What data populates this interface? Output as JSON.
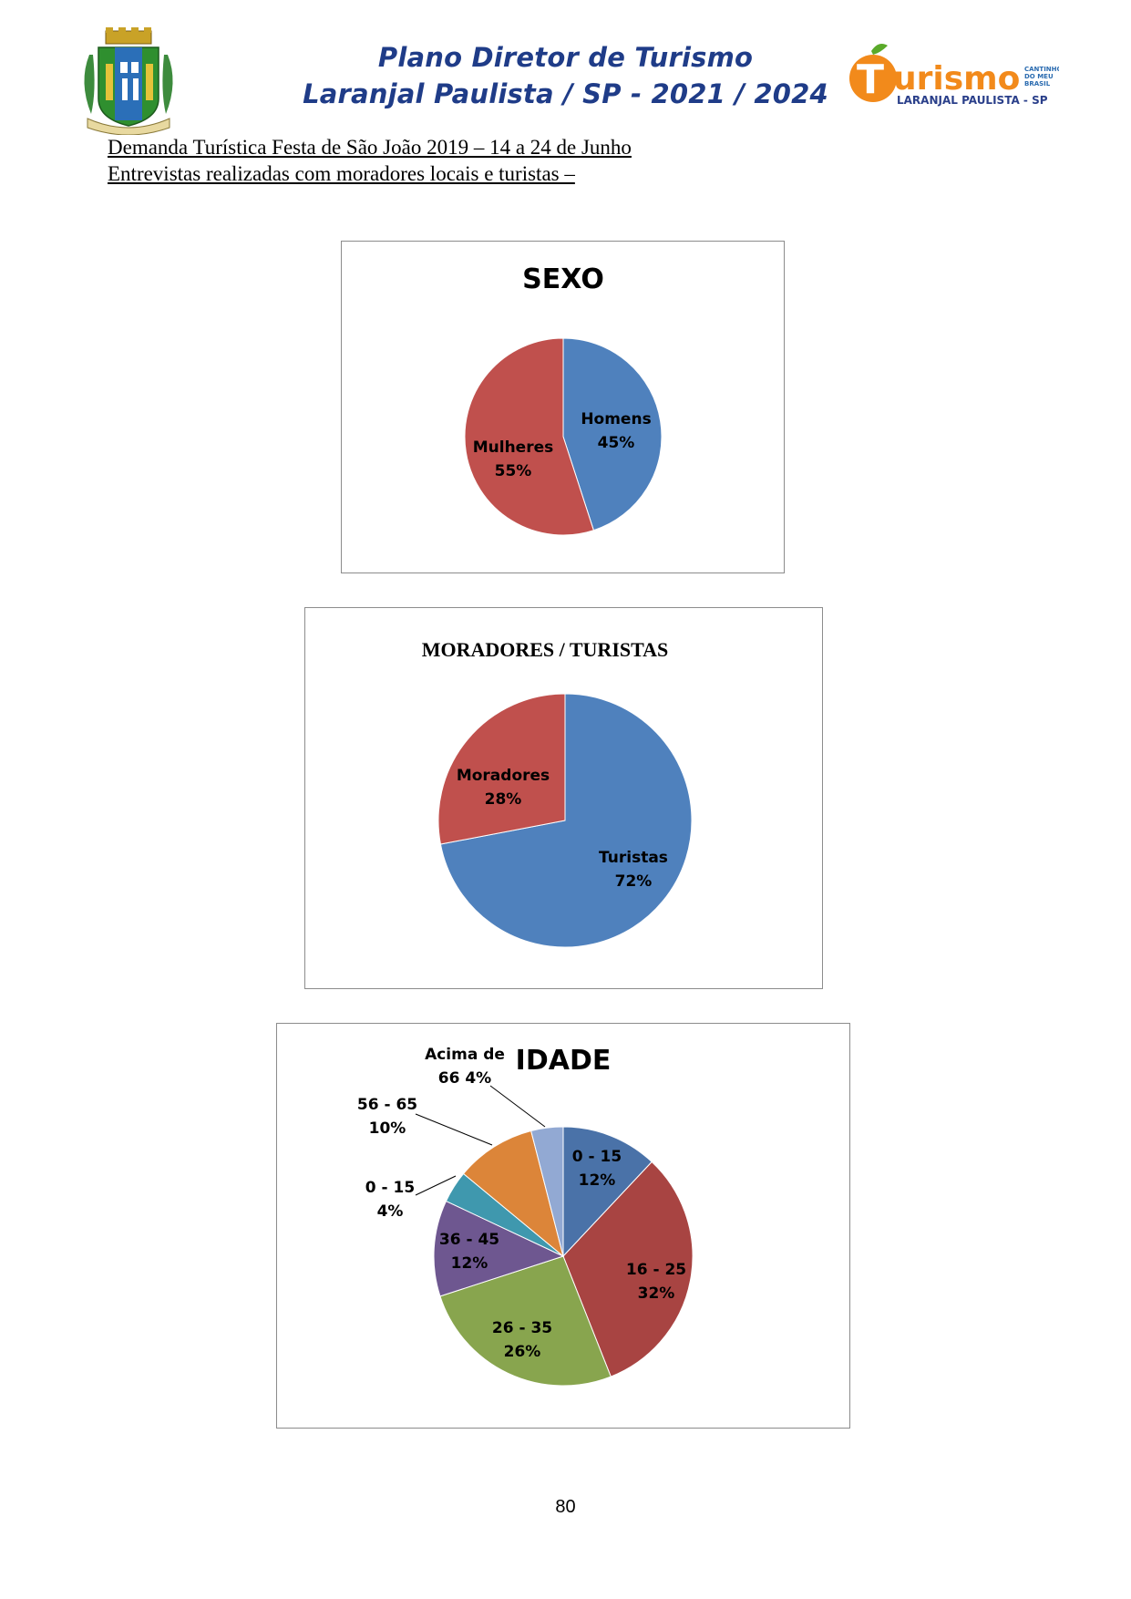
{
  "header": {
    "title_line1": "Plano Diretor de Turismo",
    "title_line2": "Laranjal Paulista / SP - 2021 / 2024",
    "logo": {
      "word": "Turismo",
      "tagline": "CANTINHO DO MEU BRASIL",
      "city": "LARANJAL PAULISTA - SP"
    },
    "crest_icon": "municipal-coat-of-arms-icon"
  },
  "subtitle_line1": "Demanda Turística Festa de São João 2019 – 14 a 24 de Junho",
  "subtitle_line2": "Entrevistas realizadas com moradores locais e turistas –",
  "chart_data": [
    {
      "type": "pie",
      "title": "SEXO",
      "slices": [
        {
          "label": "Homens",
          "value": 45,
          "value_label": "45%",
          "color": "#4f81bd"
        },
        {
          "label": "Mulheres",
          "value": 55,
          "value_label": "55%",
          "color": "#c0504d"
        }
      ]
    },
    {
      "type": "pie",
      "title": "MORADORES / TURISTAS",
      "slices": [
        {
          "label": "Turistas",
          "value": 72,
          "value_label": "72%",
          "color": "#4f81bd"
        },
        {
          "label": "Moradores",
          "value": 28,
          "value_label": "28%",
          "color": "#c0504d"
        }
      ]
    },
    {
      "type": "pie",
      "title": "IDADE",
      "slices": [
        {
          "label": "0 - 15",
          "value": 12,
          "value_label": "12%",
          "color": "#4a72a8"
        },
        {
          "label": "16 - 25",
          "value": 32,
          "value_label": "32%",
          "color": "#a84442"
        },
        {
          "label": "26 - 35",
          "value": 26,
          "value_label": "26%",
          "color": "#88a54e"
        },
        {
          "label": "36 - 45",
          "value": 12,
          "value_label": "12%",
          "color": "#6e5790"
        },
        {
          "label": "0 - 15",
          "value": 4,
          "value_label": "4%",
          "color": "#3f98ae"
        },
        {
          "label": "56 - 65",
          "value": 10,
          "value_label": "10%",
          "color": "#dc8539"
        },
        {
          "label": "Acima de 66",
          "value": 4,
          "value_label": "4%",
          "color": "#92a9d3"
        }
      ]
    }
  ],
  "page_number": "80"
}
